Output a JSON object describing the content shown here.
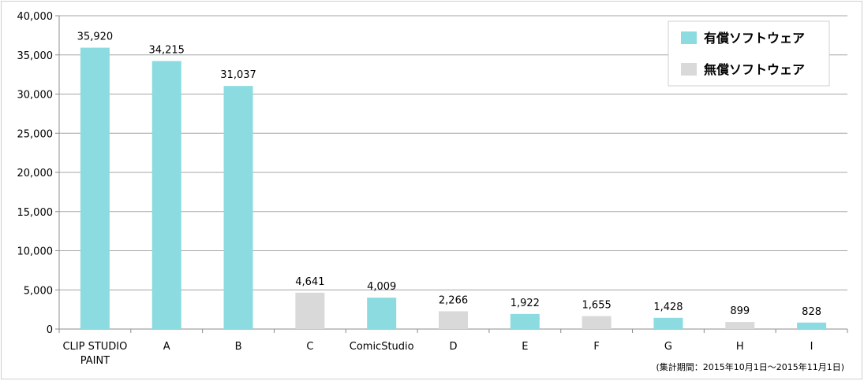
{
  "chart_data": {
    "type": "bar",
    "categories": [
      [
        "CLIP STUDIO",
        "PAINT"
      ],
      [
        "A"
      ],
      [
        "B"
      ],
      [
        "C"
      ],
      [
        "ComicStudio"
      ],
      [
        "D"
      ],
      [
        "E"
      ],
      [
        "F"
      ],
      [
        "G"
      ],
      [
        "H"
      ],
      [
        "I"
      ]
    ],
    "values": [
      35920,
      34215,
      31037,
      4641,
      4009,
      2266,
      1922,
      1655,
      1428,
      899,
      828
    ],
    "value_labels": [
      "35,920",
      "34,215",
      "31,037",
      "4,641",
      "4,009",
      "2,266",
      "1,922",
      "1,655",
      "1,428",
      "899",
      "828"
    ],
    "bar_group": [
      "paid",
      "paid",
      "paid",
      "free",
      "paid",
      "free",
      "paid",
      "free",
      "paid",
      "free",
      "paid"
    ],
    "ylim": [
      0,
      40000
    ],
    "yticks": [
      0,
      5000,
      10000,
      15000,
      20000,
      25000,
      30000,
      35000,
      40000
    ],
    "ytick_labels": [
      "0",
      "5,000",
      "10,000",
      "15,000",
      "20,000",
      "25,000",
      "30,000",
      "35,000",
      "40,000"
    ],
    "grid": true,
    "legend": {
      "placement": "top-right",
      "items": [
        {
          "key": "paid",
          "label": "有償ソフトウェア",
          "color": "#8bdbe0"
        },
        {
          "key": "free",
          "label": "無償ソフトウェア",
          "color": "#d9d9d9"
        }
      ]
    },
    "footnote": "(集計期間：2015年10月1日〜2015年11月1日)"
  }
}
